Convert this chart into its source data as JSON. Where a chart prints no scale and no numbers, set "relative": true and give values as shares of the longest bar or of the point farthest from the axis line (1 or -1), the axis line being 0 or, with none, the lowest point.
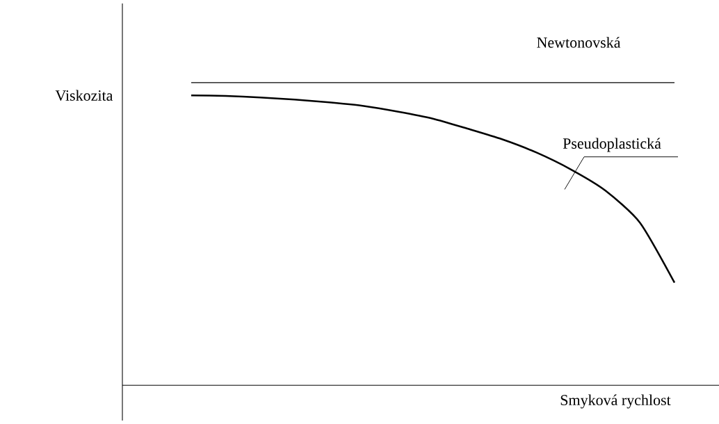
{
  "chart_data": {
    "type": "line",
    "relative": true,
    "xlabel": "Smyková rychlost",
    "ylabel": "Viskozita",
    "categories": [
      null,
      null,
      null,
      null,
      null,
      null,
      null,
      null,
      null,
      null,
      null,
      null,
      null,
      null,
      null
    ],
    "series": [
      {
        "name": "Newtonovská",
        "color": "#000000",
        "values": [
          1,
          1,
          1,
          1,
          1,
          1,
          1,
          1,
          1,
          1,
          1,
          1,
          1,
          1,
          1
        ]
      },
      {
        "name": "Pseudoplastická",
        "color": "#000000",
        "values": [
          0.958,
          0.956,
          0.951,
          0.944,
          0.935,
          0.923,
          0.904,
          0.881,
          0.848,
          0.813,
          0.769,
          0.713,
          0.643,
          0.537,
          0.339
        ]
      }
    ]
  }
}
